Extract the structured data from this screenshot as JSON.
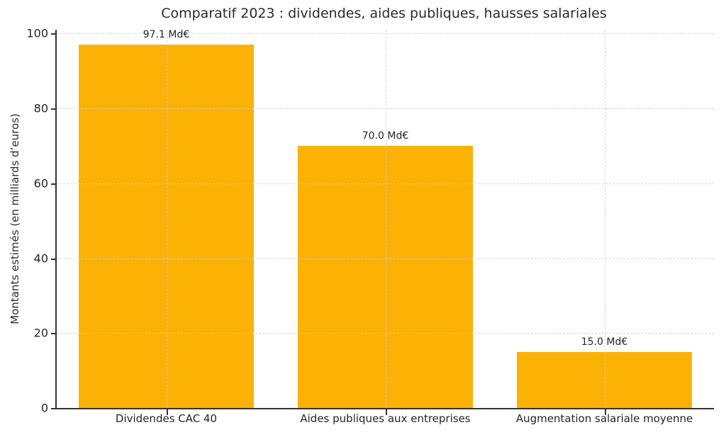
{
  "chart_data": {
    "type": "bar",
    "title": "Comparatif 2023 : dividendes, aides publiques, hausses salariales",
    "ylabel": "Montants estimés (en milliards d’euros)",
    "xlabel": "",
    "categories": [
      "Dividendes CAC 40",
      "Aides publiques aux entreprises",
      "Augmentation salariale moyenne"
    ],
    "values": [
      97.1,
      70.0,
      15.0
    ],
    "value_labels": [
      "97.1 Md€",
      "70.0 Md€",
      "15.0 Md€"
    ],
    "yticks": [
      0,
      20,
      40,
      60,
      80,
      100
    ],
    "ylim": [
      0,
      101
    ],
    "grid": "dashed, both axes, drawn over bars",
    "legend_position": "none",
    "colors": {
      "bar": "#FCB105",
      "text": "#262626",
      "grid": "#cfcfcf",
      "spine": "#333333",
      "background": "#ffffff"
    }
  }
}
